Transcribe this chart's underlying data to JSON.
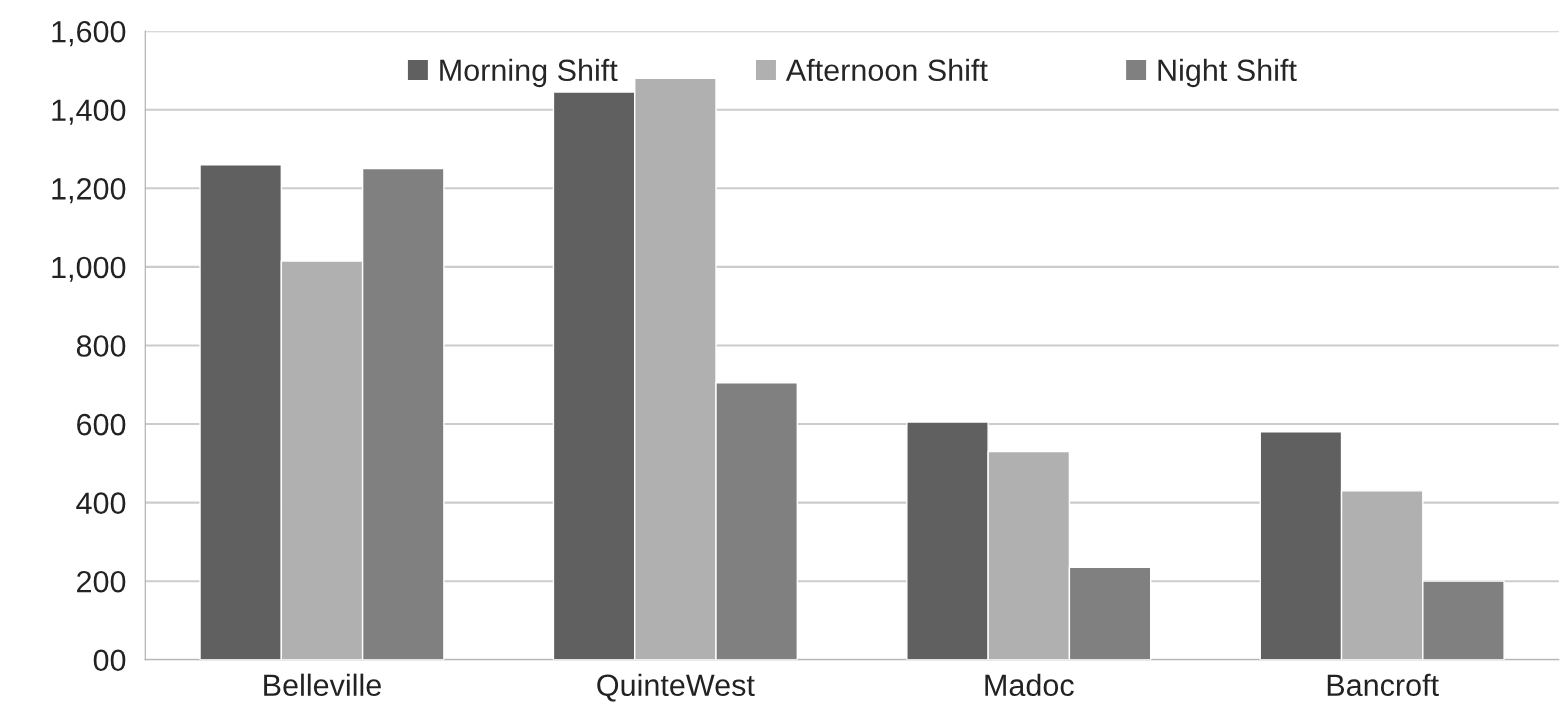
{
  "chart_data": {
    "type": "bar",
    "categories": [
      "Belleville",
      "QuinteWest",
      "Madoc",
      "Bancroft"
    ],
    "series": [
      {
        "name": "Morning Shift",
        "color": "#606060",
        "values": [
          1260,
          1445,
          605,
          580
        ]
      },
      {
        "name": "Afternoon Shift",
        "color": "#b0b0b0",
        "values": [
          1015,
          1480,
          530,
          430
        ]
      },
      {
        "name": "Night Shift",
        "color": "#808080",
        "values": [
          1250,
          705,
          235,
          200
        ]
      }
    ],
    "ylim": [
      0,
      1600
    ],
    "yticks": [
      {
        "value": 0,
        "label": "00"
      },
      {
        "value": 200,
        "label": "200"
      },
      {
        "value": 400,
        "label": "400"
      },
      {
        "value": 600,
        "label": "600"
      },
      {
        "value": 800,
        "label": "800"
      },
      {
        "value": 1000,
        "label": "1,000"
      },
      {
        "value": 1200,
        "label": "1,200"
      },
      {
        "value": 1400,
        "label": "1,400"
      },
      {
        "value": 1600,
        "label": "1,600"
      }
    ],
    "grid": "y",
    "legend": "top"
  }
}
